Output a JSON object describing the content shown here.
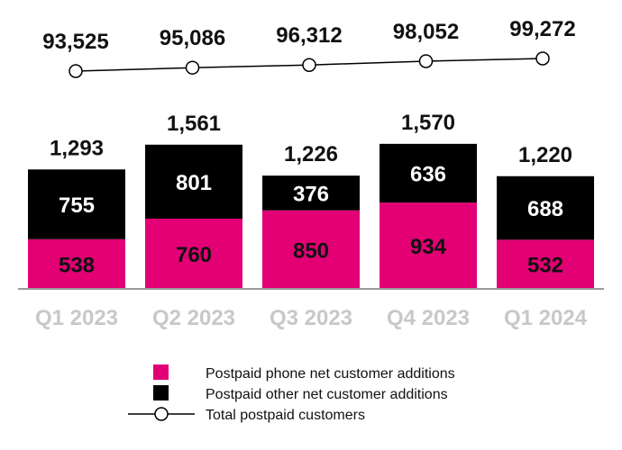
{
  "chart_data": {
    "type": "bar",
    "stacked": true,
    "categories": [
      "Q1 2023",
      "Q2 2023",
      "Q3 2023",
      "Q4 2023",
      "Q1 2024"
    ],
    "series": [
      {
        "name": "Postpaid phone net customer additions",
        "values": [
          538,
          760,
          850,
          934,
          532
        ],
        "color": "#E20074",
        "label_color": "#111111"
      },
      {
        "name": "Postpaid other net customer additions",
        "values": [
          755,
          801,
          376,
          636,
          688
        ],
        "color": "#000000",
        "label_color": "#ffffff"
      }
    ],
    "bar_totals": [
      1293,
      1561,
      1226,
      1570,
      1220
    ],
    "line_series": {
      "name": "Total postpaid customers",
      "values": [
        93525,
        95086,
        96312,
        98052,
        99272
      ],
      "color": "#000000"
    },
    "legend_position": "bottom"
  }
}
